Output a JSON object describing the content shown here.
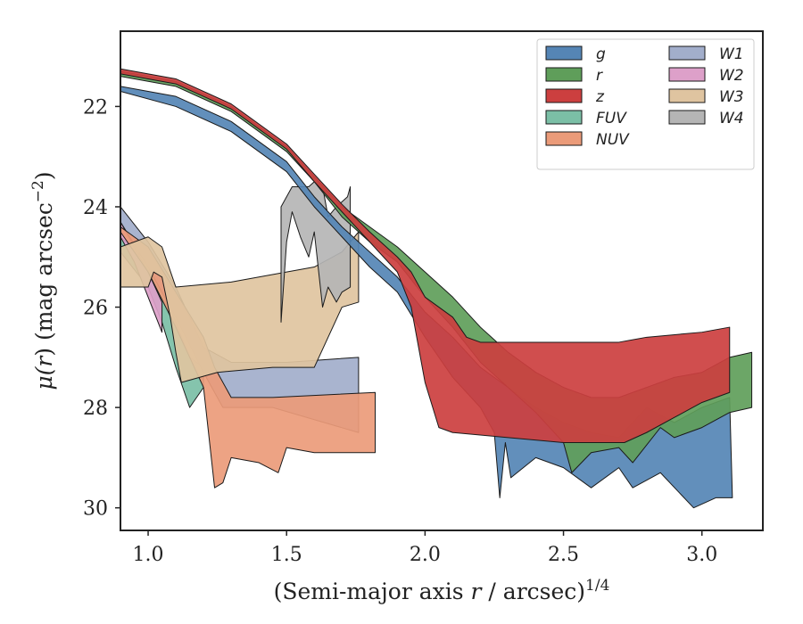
{
  "chart_data": {
    "type": "area",
    "title": "",
    "xlabel": "(Semi-major axis r / arcsec)",
    "xlabel_parts": [
      "(Semi-major axis ",
      "r",
      " / arcsec)",
      "1/4"
    ],
    "ylabel": "μ(r) (mag arcsec⁻²)",
    "ylabel_parts": [
      "μ(",
      "r",
      ") (mag arcsec",
      "−2",
      ")"
    ],
    "xlim": [
      0.9,
      3.22
    ],
    "ylim": [
      30.45,
      20.5
    ],
    "y_inverted": true,
    "xticks": [
      1.0,
      1.5,
      2.0,
      2.5,
      3.0
    ],
    "xtick_labels": [
      "1.0",
      "1.5",
      "2.0",
      "2.5",
      "3.0"
    ],
    "yticks": [
      22,
      24,
      26,
      28,
      30
    ],
    "ytick_labels": [
      "22",
      "24",
      "26",
      "28",
      "30"
    ],
    "grid": false,
    "legend_position": "top-right",
    "legend_columns": 2,
    "series": [
      {
        "name": "FUV",
        "color": "#7bbfa6",
        "upper": [
          [
            0.9,
            24.6
          ],
          [
            1.0,
            25.1
          ],
          [
            1.05,
            25.6
          ],
          [
            1.1,
            26.3
          ],
          [
            1.15,
            27.0
          ],
          [
            1.2,
            27.2
          ]
        ],
        "lower": [
          [
            0.9,
            24.9
          ],
          [
            1.0,
            25.6
          ],
          [
            1.05,
            26.3
          ],
          [
            1.1,
            27.2
          ],
          [
            1.15,
            28.0
          ],
          [
            1.2,
            27.6
          ]
        ]
      },
      {
        "name": "W2",
        "color": "#dda0c9",
        "upper": [
          [
            0.9,
            24.3
          ],
          [
            0.95,
            24.8
          ],
          [
            1.0,
            25.3
          ],
          [
            1.05,
            25.9
          ]
        ],
        "lower": [
          [
            0.9,
            24.6
          ],
          [
            0.95,
            25.1
          ],
          [
            1.0,
            25.8
          ],
          [
            1.05,
            26.5
          ]
        ]
      },
      {
        "name": "W1",
        "color": "#a2aecb",
        "upper": [
          [
            0.9,
            24.0
          ],
          [
            1.0,
            24.7
          ],
          [
            1.1,
            25.6
          ],
          [
            1.2,
            26.8
          ],
          [
            1.3,
            27.1
          ],
          [
            1.5,
            27.1
          ],
          [
            1.76,
            27.0
          ]
        ],
        "lower": [
          [
            0.9,
            24.3
          ],
          [
            1.0,
            25.2
          ],
          [
            1.1,
            26.2
          ],
          [
            1.2,
            27.3
          ],
          [
            1.27,
            28.0
          ],
          [
            1.45,
            28.0
          ],
          [
            1.76,
            28.5
          ]
        ]
      },
      {
        "name": "NUV",
        "color": "#eb9b79",
        "upper": [
          [
            0.9,
            24.4
          ],
          [
            1.0,
            24.8
          ],
          [
            1.1,
            25.7
          ],
          [
            1.2,
            26.6
          ],
          [
            1.24,
            27.2
          ],
          [
            1.3,
            27.8
          ],
          [
            1.45,
            27.8
          ],
          [
            1.82,
            27.7
          ]
        ],
        "lower": [
          [
            0.9,
            24.5
          ],
          [
            1.0,
            25.3
          ],
          [
            1.1,
            26.4
          ],
          [
            1.2,
            27.6
          ],
          [
            1.24,
            29.6
          ],
          [
            1.27,
            29.5
          ],
          [
            1.3,
            29.0
          ],
          [
            1.4,
            29.1
          ],
          [
            1.47,
            29.3
          ],
          [
            1.5,
            28.8
          ],
          [
            1.6,
            28.9
          ],
          [
            1.82,
            28.9
          ]
        ]
      },
      {
        "name": "W3",
        "color": "#dfc4a0",
        "upper": [
          [
            0.9,
            24.8
          ],
          [
            1.0,
            24.6
          ],
          [
            1.05,
            24.8
          ],
          [
            1.1,
            25.6
          ],
          [
            1.3,
            25.5
          ],
          [
            1.5,
            25.3
          ],
          [
            1.6,
            25.2
          ],
          [
            1.7,
            24.9
          ],
          [
            1.76,
            24.5
          ]
        ],
        "lower": [
          [
            0.9,
            25.6
          ],
          [
            1.0,
            25.6
          ],
          [
            1.02,
            25.3
          ],
          [
            1.05,
            25.4
          ],
          [
            1.08,
            26.2
          ],
          [
            1.1,
            26.9
          ],
          [
            1.12,
            27.5
          ],
          [
            1.25,
            27.3
          ],
          [
            1.45,
            27.2
          ],
          [
            1.6,
            27.2
          ],
          [
            1.7,
            26.0
          ],
          [
            1.76,
            25.9
          ]
        ]
      },
      {
        "name": "W4",
        "color": "#b5b5b5",
        "upper": [
          [
            1.48,
            24.0
          ],
          [
            1.52,
            23.6
          ],
          [
            1.55,
            23.6
          ],
          [
            1.58,
            23.6
          ],
          [
            1.6,
            23.5
          ],
          [
            1.63,
            23.6
          ],
          [
            1.65,
            24.2
          ],
          [
            1.68,
            24.0
          ],
          [
            1.7,
            23.9
          ],
          [
            1.72,
            23.8
          ],
          [
            1.73,
            23.6
          ]
        ],
        "lower": [
          [
            1.48,
            26.3
          ],
          [
            1.5,
            24.7
          ],
          [
            1.52,
            24.1
          ],
          [
            1.55,
            24.6
          ],
          [
            1.58,
            25.0
          ],
          [
            1.6,
            24.5
          ],
          [
            1.63,
            26.0
          ],
          [
            1.65,
            25.6
          ],
          [
            1.68,
            25.9
          ],
          [
            1.7,
            25.7
          ],
          [
            1.73,
            25.6
          ]
        ]
      },
      {
        "name": "g",
        "color": "#5585b5",
        "upper": [
          [
            0.9,
            21.6
          ],
          [
            1.1,
            21.8
          ],
          [
            1.3,
            22.3
          ],
          [
            1.5,
            23.1
          ],
          [
            1.6,
            23.8
          ],
          [
            1.7,
            24.4
          ],
          [
            1.8,
            24.9
          ],
          [
            1.9,
            25.4
          ],
          [
            2.0,
            26.1
          ],
          [
            2.1,
            26.6
          ],
          [
            2.2,
            27.2
          ],
          [
            2.3,
            27.6
          ],
          [
            2.4,
            28.0
          ],
          [
            2.5,
            28.3
          ],
          [
            2.6,
            28.5
          ],
          [
            2.7,
            28.6
          ],
          [
            2.8,
            28.0
          ],
          [
            2.9,
            28.3
          ],
          [
            3.0,
            28.0
          ],
          [
            3.1,
            27.8
          ]
        ],
        "lower": [
          [
            0.9,
            21.7
          ],
          [
            1.1,
            22.0
          ],
          [
            1.3,
            22.5
          ],
          [
            1.5,
            23.3
          ],
          [
            1.6,
            24.0
          ],
          [
            1.7,
            24.6
          ],
          [
            1.8,
            25.2
          ],
          [
            1.9,
            25.7
          ],
          [
            2.0,
            26.6
          ],
          [
            2.1,
            27.4
          ],
          [
            2.2,
            28.0
          ],
          [
            2.25,
            28.5
          ],
          [
            2.27,
            29.8
          ],
          [
            2.29,
            28.7
          ],
          [
            2.31,
            29.4
          ],
          [
            2.4,
            29.0
          ],
          [
            2.5,
            29.2
          ],
          [
            2.6,
            29.6
          ],
          [
            2.7,
            29.2
          ],
          [
            2.75,
            29.6
          ],
          [
            2.85,
            29.3
          ],
          [
            2.97,
            30.0
          ],
          [
            3.05,
            29.8
          ],
          [
            3.11,
            29.8
          ]
        ]
      },
      {
        "name": "r",
        "color": "#5f9e5a",
        "upper": [
          [
            0.9,
            21.3
          ],
          [
            1.1,
            21.5
          ],
          [
            1.3,
            22.0
          ],
          [
            1.5,
            22.8
          ],
          [
            1.6,
            23.4
          ],
          [
            1.7,
            24.0
          ],
          [
            1.8,
            24.4
          ],
          [
            1.9,
            24.8
          ],
          [
            2.0,
            25.3
          ],
          [
            2.1,
            25.8
          ],
          [
            2.2,
            26.4
          ],
          [
            2.3,
            26.9
          ],
          [
            2.4,
            27.3
          ],
          [
            2.5,
            27.6
          ],
          [
            2.6,
            27.8
          ],
          [
            2.7,
            27.8
          ],
          [
            2.8,
            27.6
          ],
          [
            2.9,
            27.4
          ],
          [
            3.0,
            27.3
          ],
          [
            3.1,
            27.0
          ],
          [
            3.18,
            26.9
          ]
        ],
        "lower": [
          [
            0.9,
            21.4
          ],
          [
            1.1,
            21.6
          ],
          [
            1.3,
            22.1
          ],
          [
            1.5,
            22.9
          ],
          [
            1.6,
            23.5
          ],
          [
            1.7,
            24.2
          ],
          [
            1.8,
            24.7
          ],
          [
            1.9,
            25.1
          ],
          [
            2.0,
            25.8
          ],
          [
            2.1,
            26.4
          ],
          [
            2.2,
            27.1
          ],
          [
            2.3,
            27.6
          ],
          [
            2.4,
            28.1
          ],
          [
            2.5,
            28.7
          ],
          [
            2.53,
            29.3
          ],
          [
            2.6,
            28.9
          ],
          [
            2.7,
            28.8
          ],
          [
            2.75,
            29.1
          ],
          [
            2.85,
            28.4
          ],
          [
            2.9,
            28.6
          ],
          [
            3.0,
            28.4
          ],
          [
            3.1,
            28.1
          ],
          [
            3.18,
            28.0
          ]
        ]
      },
      {
        "name": "z",
        "color": "#cc3f3f",
        "upper": [
          [
            0.9,
            21.25
          ],
          [
            1.1,
            21.45
          ],
          [
            1.3,
            21.95
          ],
          [
            1.5,
            22.75
          ],
          [
            1.6,
            23.35
          ],
          [
            1.7,
            23.95
          ],
          [
            1.8,
            24.5
          ],
          [
            1.9,
            25.0
          ],
          [
            1.95,
            25.3
          ],
          [
            2.0,
            25.8
          ],
          [
            2.05,
            26.0
          ],
          [
            2.1,
            26.2
          ],
          [
            2.15,
            26.6
          ],
          [
            2.2,
            26.7
          ],
          [
            2.3,
            26.7
          ],
          [
            2.5,
            26.7
          ],
          [
            2.7,
            26.7
          ],
          [
            2.8,
            26.6
          ],
          [
            3.0,
            26.5
          ],
          [
            3.1,
            26.4
          ]
        ],
        "lower": [
          [
            0.9,
            21.35
          ],
          [
            1.1,
            21.55
          ],
          [
            1.3,
            22.05
          ],
          [
            1.5,
            22.85
          ],
          [
            1.6,
            23.5
          ],
          [
            1.7,
            24.1
          ],
          [
            1.8,
            24.7
          ],
          [
            1.9,
            25.3
          ],
          [
            1.95,
            26.0
          ],
          [
            2.0,
            27.5
          ],
          [
            2.05,
            28.4
          ],
          [
            2.1,
            28.5
          ],
          [
            2.3,
            28.6
          ],
          [
            2.5,
            28.7
          ],
          [
            2.72,
            28.7
          ],
          [
            2.8,
            28.5
          ],
          [
            2.9,
            28.2
          ],
          [
            3.0,
            27.9
          ],
          [
            3.1,
            27.7
          ]
        ]
      }
    ],
    "legend_order": [
      "g",
      "r",
      "z",
      "FUV",
      "NUV",
      "W1",
      "W2",
      "W3",
      "W4"
    ]
  }
}
